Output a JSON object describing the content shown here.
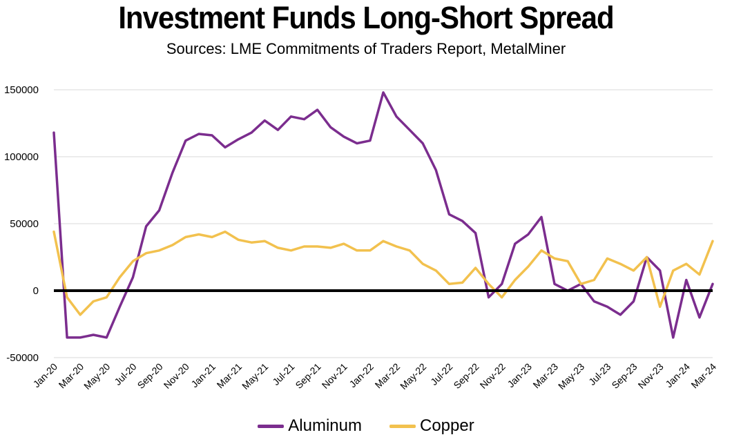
{
  "chart_data": {
    "type": "line",
    "title": "Investment Funds Long-Short Spread",
    "subtitle": "Sources: LME Commitments of Traders Report, MetalMiner",
    "xlabel": "",
    "ylabel": "",
    "ylim": [
      -50000,
      150000
    ],
    "yticks": [
      "-50000",
      "0",
      "50000",
      "100000",
      "150000"
    ],
    "grid": "horizontal",
    "legend_position": "bottom",
    "zero_line_emphasized": true,
    "x_tick_labels": [
      "Jan-20",
      "Mar-20",
      "May-20",
      "Jul-20",
      "Sep-20",
      "Nov-20",
      "Jan-21",
      "Mar-21",
      "May-21",
      "Jul-21",
      "Sep-21",
      "Nov-21",
      "Jan-22",
      "Mar-22",
      "May-22",
      "Jul-22",
      "Sep-22",
      "Nov-22",
      "Jan-23",
      "Mar-23",
      "May-23",
      "Jul-23",
      "Sep-23",
      "Nov-23",
      "Jan-24",
      "Mar-24"
    ],
    "x_months": [
      "2020-01",
      "2020-02",
      "2020-03",
      "2020-04",
      "2020-05",
      "2020-06",
      "2020-07",
      "2020-08",
      "2020-09",
      "2020-10",
      "2020-11",
      "2020-12",
      "2021-01",
      "2021-02",
      "2021-03",
      "2021-04",
      "2021-05",
      "2021-06",
      "2021-07",
      "2021-08",
      "2021-09",
      "2021-10",
      "2021-11",
      "2021-12",
      "2022-01",
      "2022-02",
      "2022-03",
      "2022-04",
      "2022-05",
      "2022-06",
      "2022-07",
      "2022-08",
      "2022-09",
      "2022-10",
      "2022-11",
      "2022-12",
      "2023-01",
      "2023-02",
      "2023-03",
      "2023-04",
      "2023-05",
      "2023-06",
      "2023-07",
      "2023-08",
      "2023-09",
      "2023-10",
      "2023-11",
      "2023-12",
      "2024-01",
      "2024-02",
      "2024-03"
    ],
    "series": [
      {
        "name": "Aluminum",
        "color": "#7B2D8E",
        "values": [
          118000,
          -35000,
          -35000,
          -33000,
          -35000,
          -12000,
          10000,
          48000,
          60000,
          88000,
          112000,
          117000,
          116000,
          107000,
          113000,
          118000,
          127000,
          120000,
          130000,
          128000,
          135000,
          122000,
          115000,
          110000,
          112000,
          148000,
          130000,
          120000,
          110000,
          90000,
          57000,
          52000,
          43000,
          -5000,
          5000,
          35000,
          42000,
          55000,
          5000,
          0,
          5000,
          -8000,
          -12000,
          -18000,
          -8000,
          25000,
          15000,
          -35000,
          8000,
          -20000,
          5000
        ]
      },
      {
        "name": "Copper",
        "color": "#F2C14E",
        "values": [
          44000,
          -5000,
          -18000,
          -8000,
          -5000,
          10000,
          22000,
          28000,
          30000,
          34000,
          40000,
          42000,
          40000,
          44000,
          38000,
          36000,
          37000,
          32000,
          30000,
          33000,
          33000,
          32000,
          35000,
          30000,
          30000,
          37000,
          33000,
          30000,
          20000,
          15000,
          5000,
          6000,
          17000,
          5000,
          -5000,
          8000,
          18000,
          30000,
          24000,
          22000,
          5000,
          8000,
          24000,
          20000,
          15000,
          25000,
          -12000,
          15000,
          20000,
          12000,
          37000
        ]
      }
    ]
  }
}
